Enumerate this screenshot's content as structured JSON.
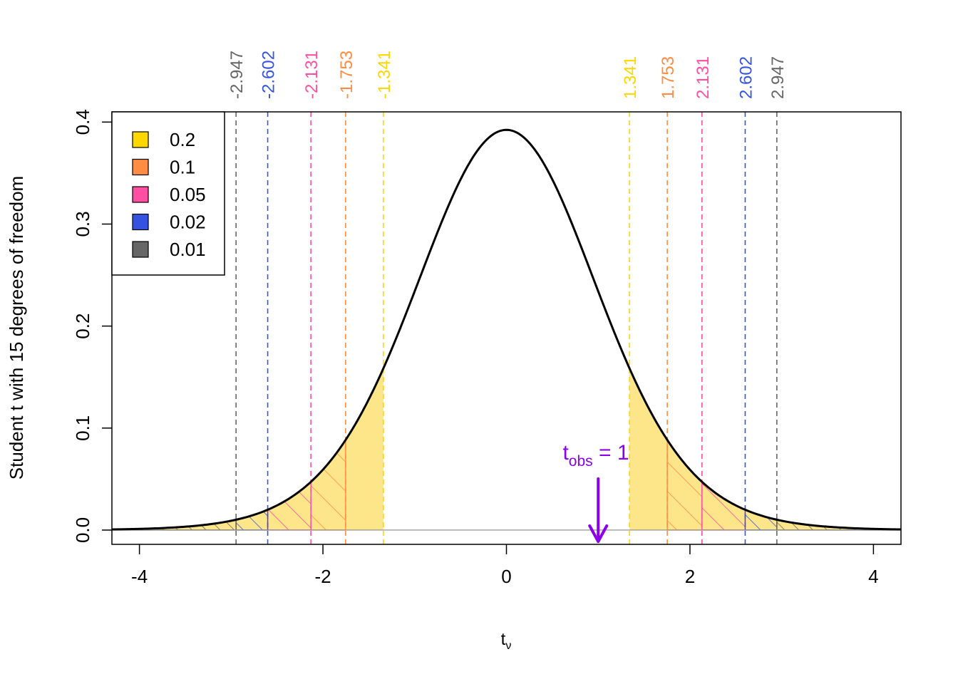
{
  "chart_data": {
    "type": "line",
    "title": "",
    "xlabel": "t",
    "xlabel_sub": "ν",
    "ylabel": "Student t with 15 degrees of freedom",
    "degrees_of_freedom": 15,
    "xlim": [
      -4.3,
      4.3
    ],
    "ylim": [
      -0.014,
      0.41
    ],
    "x_ticks": [
      -4,
      -2,
      0,
      2,
      4
    ],
    "x_tick_labels": [
      "-4",
      "-2",
      "0",
      "2",
      "4"
    ],
    "y_ticks": [
      0.0,
      0.1,
      0.2,
      0.3,
      0.4
    ],
    "y_tick_labels": [
      "0.0",
      "0.1",
      "0.2",
      "0.3",
      "0.4"
    ],
    "series": [
      {
        "x": [
          -4.3,
          -4.0,
          -3.5,
          -3.0,
          -2.947,
          -2.602,
          -2.5,
          -2.131,
          -2.0,
          -1.753,
          -1.5,
          -1.341,
          -1.0,
          -0.5,
          0.0,
          0.5,
          1.0,
          1.341,
          1.5,
          1.753,
          2.0,
          2.131,
          2.5,
          2.602,
          2.947,
          3.0,
          3.5,
          4.0,
          4.3
        ],
        "y": [
          0.0007,
          0.0012,
          0.0034,
          0.0091,
          0.01,
          0.0179,
          0.021,
          0.046,
          0.0544,
          0.085,
          0.1259,
          0.1575,
          0.2357,
          0.3458,
          0.3916,
          0.3458,
          0.2357,
          0.1575,
          0.1259,
          0.085,
          0.0544,
          0.046,
          0.021,
          0.0179,
          0.01,
          0.0091,
          0.0034,
          0.0012,
          0.0007
        ]
      }
    ],
    "critical_values": [
      {
        "alpha": "0.2",
        "value": 1.341,
        "label_neg": "-1.341",
        "label_pos": "1.341",
        "color": "#FFD700"
      },
      {
        "alpha": "0.1",
        "value": 1.753,
        "label_neg": "-1.753",
        "label_pos": "1.753",
        "color": "#FF8C42"
      },
      {
        "alpha": "0.05",
        "value": 2.131,
        "label_neg": "-2.131",
        "label_pos": "2.131",
        "color": "#FF4FA3"
      },
      {
        "alpha": "0.02",
        "value": 2.602,
        "label_neg": "-2.602",
        "label_pos": "2.602",
        "color": "#3553E0"
      },
      {
        "alpha": "0.01",
        "value": 2.947,
        "label_neg": "-2.947",
        "label_pos": "2.947",
        "color": "#666666"
      }
    ],
    "legend": {
      "position": "top-left",
      "entries": [
        "0.2",
        "0.1",
        "0.05",
        "0.02",
        "0.01"
      ]
    },
    "annotation": {
      "text_main": "t",
      "text_sub": "obs",
      "text_rest": " = 1",
      "x": 1,
      "color": "#8B00E8"
    },
    "grid": false
  }
}
